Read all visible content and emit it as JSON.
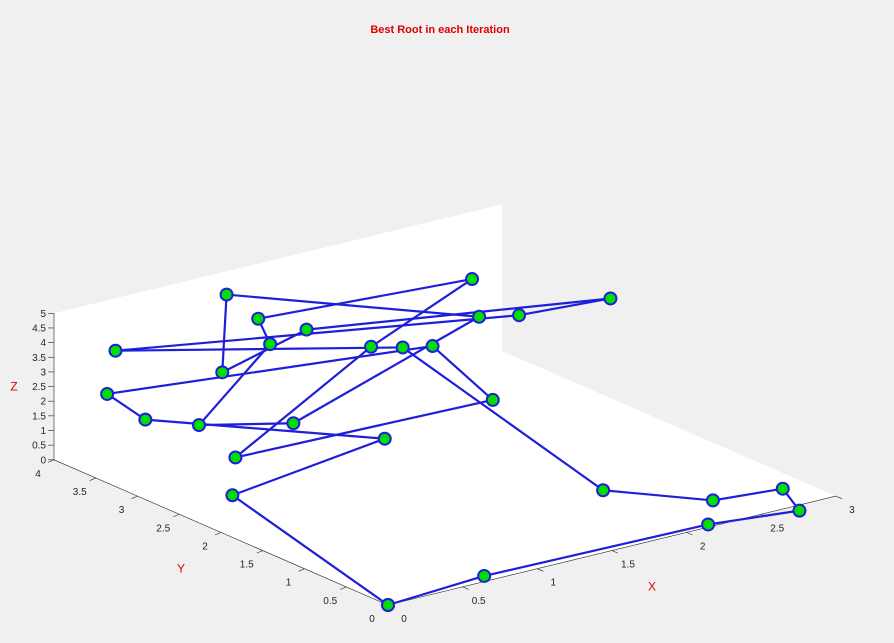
{
  "chart_data": {
    "type": "scatter3d-line",
    "title": "Best Root in each Iteration",
    "xlabel": "X",
    "ylabel": "Y",
    "zlabel": "Z",
    "xlim": [
      0,
      3
    ],
    "ylim": [
      0,
      4
    ],
    "zlim": [
      0,
      5
    ],
    "xticks": [
      "0",
      "0.5",
      "1",
      "1.5",
      "2",
      "2.5",
      "3"
    ],
    "yticks": [
      "0",
      "0.5",
      "1",
      "1.5",
      "2",
      "2.5",
      "3",
      "3.5",
      "4"
    ],
    "zticks": [
      "0",
      "0.5",
      "1",
      "1.5",
      "2",
      "2.5",
      "3",
      "3.5",
      "4",
      "4.5",
      "5"
    ],
    "grid": false,
    "colors": {
      "line": "#1f1fdb",
      "marker_fill": "#00e000",
      "marker_edge": "#1f1fdb",
      "text": "#e00000"
    },
    "points": [
      {
        "x": 0.0,
        "y": 0.0,
        "z": 0.0
      },
      {
        "x": 0.3,
        "y": 2.4,
        "z": 0.4
      },
      {
        "x": 1.6,
        "y": 2.9,
        "z": 0.1
      },
      {
        "x": 0.5,
        "y": 3.8,
        "z": 1.0
      },
      {
        "x": 0.3,
        "y": 3.9,
        "z": 2.0
      },
      {
        "x": 2.2,
        "y": 3.4,
        "z": 1.9
      },
      {
        "x": 2.1,
        "y": 2.5,
        "z": 1.3
      },
      {
        "x": 0.6,
        "y": 2.9,
        "z": 0.7
      },
      {
        "x": 1.9,
        "y": 3.6,
        "z": 2.0
      },
      {
        "x": 2.8,
        "y": 4.0,
        "z": 2.7
      },
      {
        "x": 1.2,
        "y": 3.7,
        "z": 3.7
      },
      {
        "x": 1.0,
        "y": 3.2,
        "z": 3.7
      },
      {
        "x": 0.3,
        "y": 2.8,
        "z": 2.3
      },
      {
        "x": 1.1,
        "y": 3.1,
        "z": 1.0
      },
      {
        "x": 2.4,
        "y": 3.2,
        "z": 2.9
      },
      {
        "x": 1.1,
        "y": 3.9,
        "z": 4.4
      },
      {
        "x": 0.4,
        "y": 2.7,
        "z": 4.1
      },
      {
        "x": 1.3,
        "y": 3.3,
        "z": 3.7
      },
      {
        "x": 3.0,
        "y": 2.7,
        "z": 3.4
      },
      {
        "x": 2.5,
        "y": 2.9,
        "z": 3.2
      },
      {
        "x": 0.3,
        "y": 3.8,
        "z": 3.6
      },
      {
        "x": 2.0,
        "y": 3.4,
        "z": 2.1
      },
      {
        "x": 2.0,
        "y": 1.0,
        "z": 0.2
      },
      {
        "x": 2.4,
        "y": 0.4,
        "z": 0.1
      },
      {
        "x": 2.7,
        "y": 0.1,
        "z": 0.5
      },
      {
        "x": 2.7,
        "y": -0.1,
        "z": 0.0
      },
      {
        "x": 2.2,
        "y": 0.1,
        "z": -0.1
      },
      {
        "x": 0.7,
        "y": 0.1,
        "z": 0.0
      },
      {
        "x": 0.0,
        "y": 0.0,
        "z": 0.0
      }
    ]
  }
}
